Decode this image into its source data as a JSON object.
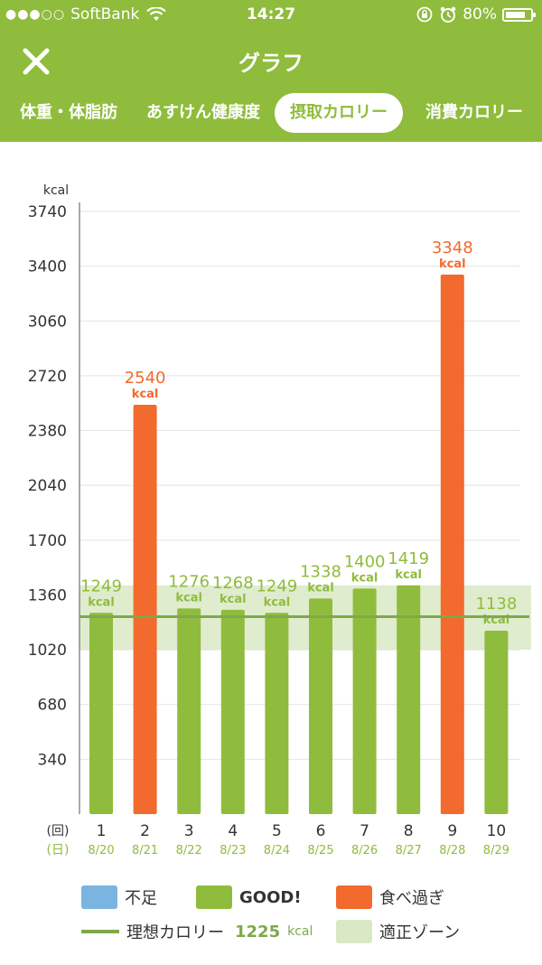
{
  "status_bar": {
    "signal": "●●●○○",
    "carrier": "SoftBank",
    "time": "14:27",
    "battery": "80%",
    "battery_level": 0.8
  },
  "header": {
    "title": "グラフ",
    "close_icon": "close-icon",
    "tabs": [
      {
        "label": "体重・体脂肪",
        "active": false
      },
      {
        "label": "あすけん健康度",
        "active": false
      },
      {
        "label": "摂取カロリー",
        "active": true
      },
      {
        "label": "消費カロリー",
        "active": false
      }
    ]
  },
  "colors": {
    "header": "#8fbc3c",
    "good": "#8fbc3c",
    "over": "#f26a2e",
    "under": "#7ab4e0",
    "zone": "#d9e9c6",
    "ideal": "#7ea94a"
  },
  "chart_data": {
    "type": "bar",
    "ylabel": "kcal",
    "y_ticks": [
      340,
      680,
      1020,
      1360,
      1700,
      2040,
      2380,
      2720,
      3060,
      3400,
      3740
    ],
    "ylim": [
      0,
      3740
    ],
    "x_row_label": "(回)",
    "date_row_label": "(日)",
    "categories": [
      "1",
      "2",
      "3",
      "4",
      "5",
      "6",
      "7",
      "8",
      "9",
      "10"
    ],
    "dates": [
      "8/20",
      "8/21",
      "8/22",
      "8/23",
      "8/24",
      "8/25",
      "8/26",
      "8/27",
      "8/28",
      "8/29"
    ],
    "values": [
      1249,
      2540,
      1276,
      1268,
      1249,
      1338,
      1400,
      1419,
      3348,
      1138
    ],
    "status": [
      "good",
      "over",
      "good",
      "good",
      "good",
      "good",
      "good",
      "good",
      "over",
      "good"
    ],
    "value_unit": "kcal",
    "ideal": 1225,
    "zone": [
      1020,
      1420
    ],
    "grid": true
  },
  "legend": {
    "under": "不足",
    "good": "GOOD!",
    "over": "食べ過ぎ",
    "ideal_label": "理想カロリー",
    "ideal_value": "1225",
    "ideal_unit": "kcal",
    "zone": "適正ゾーン"
  }
}
